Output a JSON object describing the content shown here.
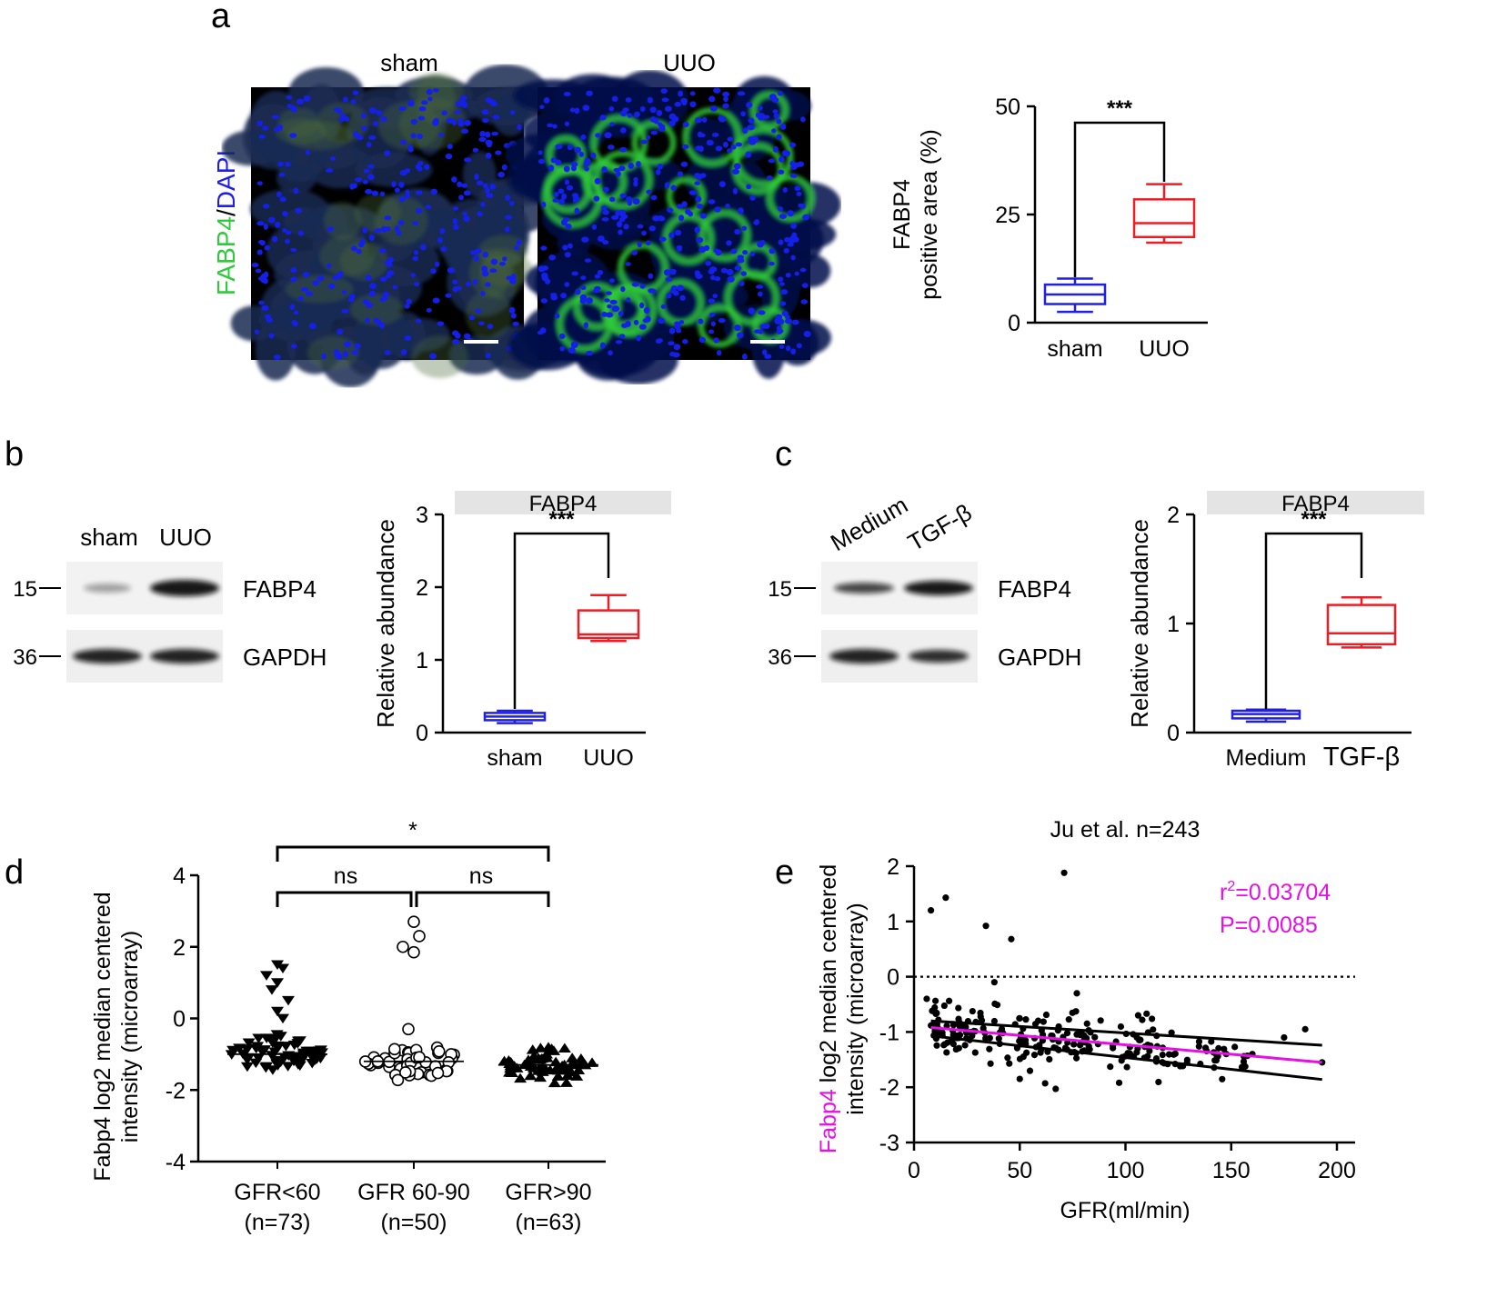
{
  "colors": {
    "blue": "#1f1fe6",
    "red": "#ee1c24",
    "magenta": "#e60fe6",
    "green": "#2fc93a",
    "strip": "#e4e4e4",
    "nuclei": "#1420e8",
    "tissue": "#0b0b3c"
  },
  "panel_a": {
    "letter": "a",
    "image_labels": [
      "sham",
      "UUO"
    ],
    "stain_label_green": "FABP4",
    "stain_label_sep": "/",
    "stain_label_blue": "DAPI"
  },
  "panel_b": {
    "letter": "b",
    "blot_lanes": [
      "sham",
      "UUO"
    ],
    "blot_rows": [
      {
        "marker": "15",
        "protein": "FABP4"
      },
      {
        "marker": "36",
        "protein": "GAPDH"
      }
    ]
  },
  "panel_c": {
    "letter": "c",
    "blot_lanes": [
      "Medium",
      "TGF-β"
    ],
    "blot_rows": [
      {
        "marker": "15",
        "protein": "FABP4"
      },
      {
        "marker": "36",
        "protein": "GAPDH"
      }
    ]
  },
  "panel_d": {
    "letter": "d"
  },
  "panel_e": {
    "letter": "e"
  },
  "chart_data": [
    {
      "id": "a_box",
      "type": "box",
      "ylabel_line1": "FABP4",
      "ylabel_line2": "positive area (%)",
      "ylim": [
        0,
        50
      ],
      "yticks": [
        "0",
        "25",
        "50"
      ],
      "categories": [
        "sham",
        "UUO"
      ],
      "boxes": [
        {
          "name": "sham",
          "min": 2.5,
          "q1": 4.3,
          "median": 6.5,
          "q3": 8.8,
          "max": 10.2,
          "color": "blue"
        },
        {
          "name": "UUO",
          "min": 18.5,
          "q1": 19.8,
          "median": 23.0,
          "q3": 28.5,
          "max": 32.0,
          "color": "red"
        }
      ],
      "significance": "***"
    },
    {
      "id": "b_box",
      "type": "box",
      "title": "FABP4",
      "ylabel": "Relative abundance",
      "ylim": [
        0,
        3
      ],
      "yticks": [
        "0",
        "1",
        "2",
        "3"
      ],
      "categories": [
        "sham",
        "UUO"
      ],
      "boxes": [
        {
          "name": "sham",
          "min": 0.13,
          "q1": 0.17,
          "median": 0.22,
          "q3": 0.27,
          "max": 0.3,
          "color": "blue"
        },
        {
          "name": "UUO",
          "min": 1.26,
          "q1": 1.3,
          "median": 1.35,
          "q3": 1.68,
          "max": 1.89,
          "color": "red"
        }
      ],
      "significance": "***"
    },
    {
      "id": "c_box",
      "type": "box",
      "title": "FABP4",
      "ylabel": "Relative abundance",
      "ylim": [
        0,
        2
      ],
      "yticks": [
        "0",
        "1",
        "2"
      ],
      "categories": [
        "Medium",
        "TGF-β"
      ],
      "boxes": [
        {
          "name": "Medium",
          "min": 0.1,
          "q1": 0.13,
          "median": 0.17,
          "q3": 0.2,
          "max": 0.21,
          "color": "blue"
        },
        {
          "name": "TGF-β",
          "min": 0.78,
          "q1": 0.81,
          "median": 0.91,
          "q3": 1.17,
          "max": 1.24,
          "color": "red"
        }
      ],
      "significance": "***"
    },
    {
      "id": "d_dot",
      "type": "scatter",
      "ylabel_line1": "Fabp4 log2 median centered",
      "ylabel_line2": "intensity (microarray)",
      "ylim": [
        -4,
        4
      ],
      "yticks": [
        "-4",
        "-2",
        "0",
        "2",
        "4"
      ],
      "categories": [
        "GFR<60",
        "GFR 60-90",
        "GFR>90"
      ],
      "ns": [
        "(n=73)",
        "(n=50)",
        "(n=63)"
      ],
      "groups": [
        {
          "name": "GFR<60",
          "n": 73,
          "marker": "triangle-down",
          "mean": -1.0,
          "min": -1.7,
          "high_values": [
            1.5,
            1.4,
            1.2,
            1.0,
            0.8,
            0.5,
            0.2,
            0.0
          ]
        },
        {
          "name": "GFR 60-90",
          "n": 50,
          "marker": "circle-open",
          "mean": -1.2,
          "min": -2.1,
          "high_values": [
            2.7,
            2.3,
            2.0,
            1.85,
            -0.3
          ]
        },
        {
          "name": "GFR>90",
          "n": 63,
          "marker": "triangle-up",
          "mean": -1.3,
          "min": -1.95,
          "high_values": [
            -0.8,
            -0.9
          ]
        }
      ],
      "comparisons": [
        {
          "from": "GFR<60",
          "to": "GFR>90",
          "label": "*"
        },
        {
          "from": "GFR<60",
          "to": "GFR 60-90",
          "label": "ns"
        },
        {
          "from": "GFR 60-90",
          "to": "GFR>90",
          "label": "ns"
        }
      ]
    },
    {
      "id": "e_scatter",
      "type": "scatter",
      "title": "Ju et al. n=243",
      "xlabel": "GFR(ml/min)",
      "ylabel_prefix": "Fabp4",
      "ylabel_line1_rest": " log2 median centered",
      "ylabel_line2": "intensity (microarray)",
      "xlim": [
        0,
        200
      ],
      "ylim": [
        -3,
        2
      ],
      "xticks": [
        "0",
        "50",
        "100",
        "150",
        "200"
      ],
      "yticks": [
        "-3",
        "-2",
        "-1",
        "0",
        "1",
        "2"
      ],
      "annotation_r2_prefix": "r",
      "annotation_r2_sup": "2",
      "annotation_r2_value": "=0.03704",
      "annotation_p": "P=0.0085",
      "regression": {
        "x0": 8,
        "y0": -0.92,
        "x1": 193,
        "y1": -1.55
      },
      "ci_upper": {
        "x0": 8,
        "y0": -0.8,
        "x1": 193,
        "y1": -1.24
      },
      "ci_lower": {
        "x0": 8,
        "y0": -1.07,
        "x1": 193,
        "y1": -1.86
      },
      "highlight_points": [
        [
          8,
          1.2
        ],
        [
          15,
          1.43
        ],
        [
          34,
          0.92
        ],
        [
          46,
          0.68
        ],
        [
          71,
          1.88
        ],
        [
          38,
          -0.1
        ],
        [
          77,
          -0.3
        ],
        [
          6,
          -0.4
        ],
        [
          185,
          -0.95
        ],
        [
          175,
          -1.1
        ],
        [
          193,
          -1.55
        ],
        [
          160,
          -1.4
        ],
        [
          106,
          -0.7
        ],
        [
          110,
          -0.67
        ],
        [
          62,
          -1.93
        ],
        [
          67,
          -2.03
        ],
        [
          97,
          -1.92
        ],
        [
          50,
          -1.85
        ]
      ]
    }
  ]
}
